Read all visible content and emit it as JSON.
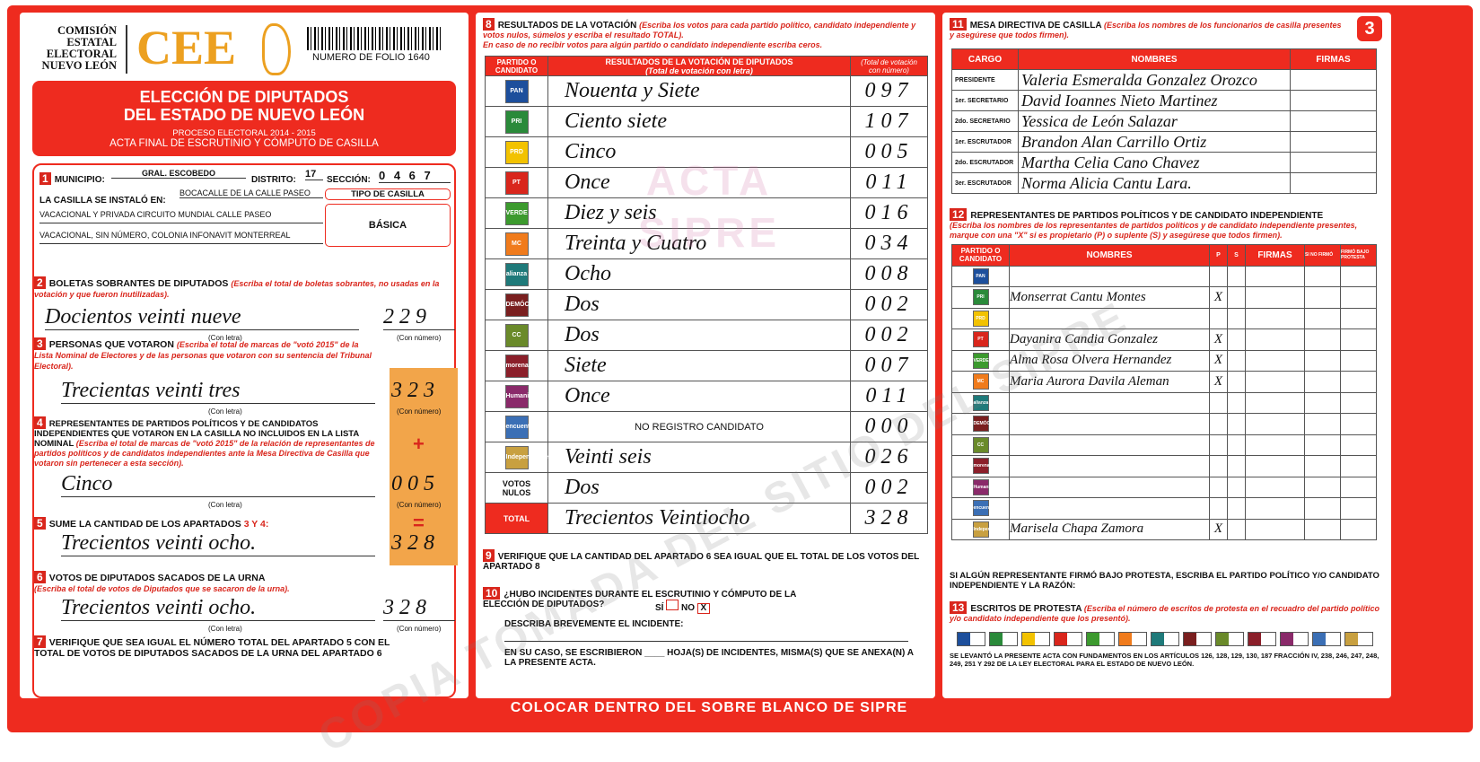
{
  "header": {
    "org": [
      "COMISIÓN",
      "ESTATAL",
      "ELECTORAL",
      "NUEVO LEÓN"
    ],
    "logo_text": "CEE",
    "folio": "NUMERO DE FOLIO 1640",
    "title1": "ELECCIÓN DE DIPUTADOS",
    "title2": "DEL ESTADO DE NUEVO LEÓN",
    "process": "PROCESO ELECTORAL 2014 - 2015",
    "acta": "ACTA FINAL DE ESCRUTINIO Y CÓMPUTO DE CASILLA",
    "page_number": "3"
  },
  "s1": {
    "num": "1",
    "municipio_label": "MUNICIPIO:",
    "municipio": "GRAL. ESCOBEDO",
    "distrito_label": "DISTRITO:",
    "distrito": "17",
    "seccion_label": "SECCIÓN:",
    "seccion": "0 4 6 7",
    "instalo_label": "LA CASILLA SE INSTALÓ EN:",
    "addr1": "BOCACALLE DE LA CALLE PASEO",
    "addr2": "VACACIONAL Y PRIVADA CIRCUITO MUNDIAL CALLE PASEO",
    "addr3": "VACACIONAL, SIN NÚMERO, COLONIA INFONAVIT MONTERREAL",
    "tipo_label": "TIPO DE CASILLA",
    "tipo": "BÁSICA"
  },
  "s2": {
    "num": "2",
    "title": "BOLETAS SOBRANTES DE DIPUTADOS",
    "inst": "(Escriba el total de boletas sobrantes, no usadas en la votación y que fueron inutilizadas).",
    "letra": "Docientos veinti nueve",
    "numero": "229",
    "con_letra": "(Con letra)",
    "con_numero": "(Con número)"
  },
  "s3": {
    "num": "3",
    "title": "PERSONAS QUE VOTARON",
    "inst": "(Escriba el total de marcas de \"votó 2015\" de la Lista Nominal de Electores y de las personas que votaron con su sentencia del Tribunal Electoral).",
    "letra": "Trecientas veinti tres",
    "numero": "323"
  },
  "s4": {
    "num": "4",
    "title": "REPRESENTANTES DE PARTIDOS POLÍTICOS Y DE CANDIDATOS INDEPENDIENTES QUE VOTARON EN LA CASILLA NO INCLUIDOS EN LA LISTA NOMINAL",
    "inst": "(Escriba el total de marcas de \"votó 2015\" de la relación de representantes de partidos políticos y de candidatos independientes ante la Mesa Directiva de Casilla que votaron sin pertenecer a esta sección).",
    "letra": "Cinco",
    "numero": "005",
    "plus": "+"
  },
  "s5": {
    "num": "5",
    "title": "SUME LA CANTIDAD DE LOS APARTADOS",
    "ref": "3 Y 4:",
    "letra": "Trecientos veinti ocho.",
    "numero": "328",
    "eq": "="
  },
  "s6": {
    "num": "6",
    "title": "VOTOS DE DIPUTADOS SACADOS DE LA URNA",
    "inst": "(Escriba el total de votos de Diputados que se sacaron de la urna).",
    "letra": "Trecientos veinti ocho.",
    "numero": "328"
  },
  "s7": {
    "num": "7",
    "text": "VERIFIQUE QUE SEA IGUAL EL NÚMERO TOTAL DEL APARTADO 5 CON EL TOTAL DE VOTOS DE DIPUTADOS SACADOS DE LA URNA DEL APARTADO 6"
  },
  "s8": {
    "num": "8",
    "title": "RESULTADOS DE LA VOTACIÓN",
    "inst": "(Escriba los votos para cada partido político, candidato independiente y votos nulos, súmelos y escriba el resultado TOTAL).",
    "inst2": "En caso de no recibir votos para algún partido o candidato independiente escriba ceros.",
    "col1": "PARTIDO O CANDIDATO",
    "col2": "RESULTADOS DE LA VOTACIÓN DE DIPUTADOS",
    "col2s": "(Total de votación con letra)",
    "col3": "(Total de votación con número)",
    "rows": [
      {
        "party": "PAN",
        "color": "#1d4f9c",
        "letra": "Nouenta y Siete",
        "numero": "097"
      },
      {
        "party": "PRI",
        "color": "#2a8a3a",
        "letra": "Ciento siete",
        "numero": "107"
      },
      {
        "party": "PRD",
        "color": "#f2c200",
        "letra": "Cinco",
        "numero": "005"
      },
      {
        "party": "PT",
        "color": "#d9261c",
        "letra": "Once",
        "numero": "011"
      },
      {
        "party": "VERDE",
        "color": "#3c9a2e",
        "letra": "Diez y seis",
        "numero": "016"
      },
      {
        "party": "MC",
        "color": "#f07b1c",
        "letra": "Treinta y Cuatro",
        "numero": "034"
      },
      {
        "party": "alianza",
        "color": "#1f7a7a",
        "letra": "Ocho",
        "numero": "008"
      },
      {
        "party": "DEMÓCRATA",
        "color": "#7a1f1f",
        "letra": "Dos",
        "numero": "002"
      },
      {
        "party": "CC",
        "color": "#6a8a2a",
        "letra": "Dos",
        "numero": "002"
      },
      {
        "party": "morena",
        "color": "#8b1f2a",
        "letra": "Siete",
        "numero": "007"
      },
      {
        "party": "Humanista",
        "color": "#8a2a6a",
        "letra": "Once",
        "numero": "011"
      },
      {
        "party": "encuentro",
        "color": "#3b6fb5",
        "letra": "NO REGISTRO CANDIDATO",
        "numero": "000"
      },
      {
        "party": "Independiente",
        "color": "#c8a040",
        "letra": "Veinti seis",
        "numero": "026"
      },
      {
        "party": "VOTOS NULOS",
        "color": "",
        "letra": "Dos",
        "numero": "002"
      },
      {
        "party": "TOTAL",
        "color": "",
        "letra": "Trecientos Veintiocho",
        "numero": "328"
      }
    ]
  },
  "s9": {
    "num": "9",
    "text": "VERIFIQUE QUE LA CANTIDAD DEL APARTADO 6 SEA IGUAL QUE EL TOTAL DE LOS VOTOS DEL APARTADO 8"
  },
  "s10": {
    "num": "10",
    "q": "¿HUBO INCIDENTES DURANTE EL ESCRUTINIO Y CÓMPUTO DE LA ELECCIÓN DE DIPUTADOS?",
    "si": "SÍ",
    "no": "NO",
    "describe": "DESCRIBA BREVEMENTE EL INCIDENTE:",
    "anexa": "EN SU CASO, SE ESCRIBIERON ____ HOJA(S) DE INCIDENTES, MISMA(S) QUE SE ANEXA(N) A LA PRESENTE ACTA."
  },
  "s11": {
    "num": "11",
    "title": "MESA DIRECTIVA DE CASILLA",
    "inst": "(Escriba los nombres de los funcionarios de casilla presentes y asegúrese que todos firmen).",
    "cols": [
      "CARGO",
      "NOMBRES",
      "FIRMAS"
    ],
    "rows": [
      {
        "cargo": "PRESIDENTE",
        "nombre": "Valeria Esmeralda Gonzalez Orozco"
      },
      {
        "cargo": "1er. SECRETARIO",
        "nombre": "David Ioannes Nieto Martinez"
      },
      {
        "cargo": "2do. SECRETARIO",
        "nombre": "Yessica de León Salazar"
      },
      {
        "cargo": "1er. ESCRUTADOR",
        "nombre": "Brandon Alan Carrillo Ortiz"
      },
      {
        "cargo": "2do. ESCRUTADOR",
        "nombre": "Martha Celia Cano Chavez"
      },
      {
        "cargo": "3er. ESCRUTADOR",
        "nombre": "Norma Alicia Cantu Lara."
      }
    ]
  },
  "s12": {
    "num": "12",
    "title": "REPRESENTANTES DE PARTIDOS POLÍTICOS Y DE CANDIDATO INDEPENDIENTE",
    "inst": "(Escriba los nombres de los representantes de partidos políticos y de candidato independiente presentes, marque con una \"X\" si es propietario (P) o suplente (S) y asegúrese que todos firmen).",
    "cols": [
      "PARTIDO O CANDIDATO",
      "NOMBRES",
      "P",
      "S",
      "FIRMAS",
      "SI NO FIRMÓ",
      "FIRMÓ BAJO PROTESTA"
    ],
    "rows": [
      {
        "party": "PAN",
        "nombre": "",
        "p": ""
      },
      {
        "party": "PRI",
        "nombre": "Monserrat Cantu Montes",
        "p": "X"
      },
      {
        "party": "PRD",
        "nombre": "",
        "p": ""
      },
      {
        "party": "PT",
        "nombre": "Dayanira Candia Gonzalez",
        "p": "X"
      },
      {
        "party": "VERDE",
        "nombre": "Alma Rosa Olvera Hernandez",
        "p": "X"
      },
      {
        "party": "MC",
        "nombre": "Maria Aurora Davila Aleman",
        "p": "X"
      },
      {
        "party": "alianza",
        "nombre": "",
        "p": ""
      },
      {
        "party": "DEMÓCRATA",
        "nombre": "",
        "p": ""
      },
      {
        "party": "CC",
        "nombre": "",
        "p": ""
      },
      {
        "party": "morena",
        "nombre": "",
        "p": ""
      },
      {
        "party": "Humanista",
        "nombre": "",
        "p": ""
      },
      {
        "party": "encuentro",
        "nombre": "",
        "p": ""
      },
      {
        "party": "Independiente",
        "nombre": "Marisela Chapa Zamora",
        "p": "X"
      }
    ],
    "protesta": "SI ALGÚN REPRESENTANTE FIRMÓ BAJO PROTESTA, ESCRIBA EL PARTIDO POLÍTICO Y/O CANDIDATO INDEPENDIENTE Y LA RAZÓN:"
  },
  "s13": {
    "num": "13",
    "title": "ESCRITOS DE PROTESTA",
    "inst": "(Escriba el número de escritos de protesta en el recuadro del partido político y/o candidato independiente que los presentó).",
    "legal": "SE LEVANTÓ LA PRESENTE ACTA CON FUNDAMENTOS EN LOS ARTÍCULOS 126, 128, 129, 130, 187 FRACCIÓN IV, 238, 246, 247, 248, 249, 251 Y 292 DE LA LEY ELECTORAL PARA EL ESTADO DE NUEVO LEÓN."
  },
  "footer": "COLOCAR DENTRO DEL SOBRE BLANCO DE SIPRE",
  "watermark": "COPIA TOMADA DEL SITIO DEL SIPRE",
  "watermark2": "ACTA SIPRE"
}
